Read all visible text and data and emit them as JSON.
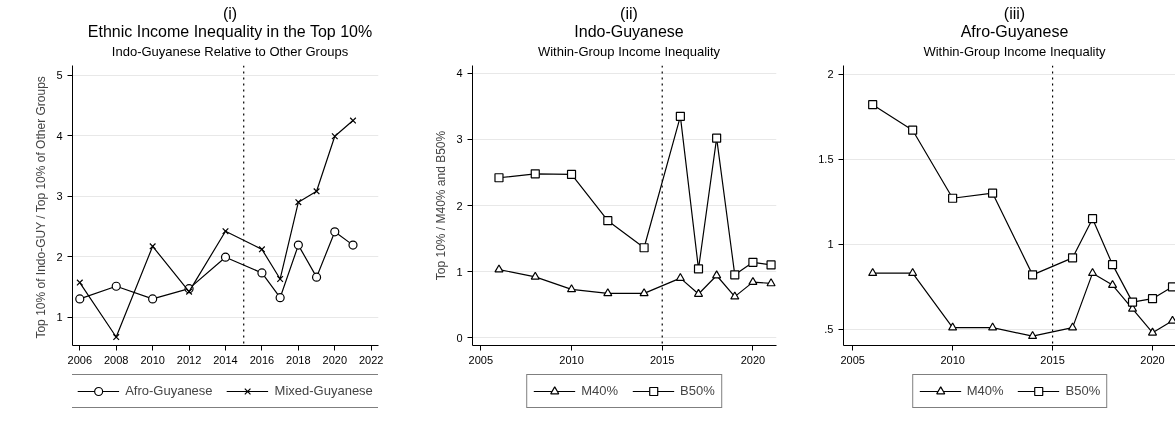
{
  "chart_data": [
    {
      "type": "line",
      "title": "(i)\nEthnic Income Inequality in the Top 10%",
      "subtitle": "Indo-Guyanese Relative to Other Groups",
      "ylabel": "Top 10% of Indo-GUY / Top 10%  of Other Groups",
      "x": [
        2006,
        2008,
        2010,
        2012,
        2014,
        2016,
        2017,
        2018,
        2019,
        2020,
        2021
      ],
      "series": [
        {
          "name": "Afro-Guyanese",
          "color": "#000000",
          "marker": "circle",
          "values": [
            1.3,
            1.51,
            1.3,
            1.47,
            1.99,
            1.73,
            1.32,
            2.19,
            1.66,
            2.41,
            2.19
          ]
        },
        {
          "name": "Mixed-Guyanese",
          "color": "#000000",
          "marker": "cross",
          "values": [
            1.57,
            0.67,
            2.17,
            1.42,
            2.42,
            2.12,
            1.63,
            2.9,
            3.08,
            3.99,
            4.25
          ]
        }
      ],
      "xlim": [
        2005.6,
        2022.4
      ],
      "xticks": [
        2006,
        2008,
        2010,
        2012,
        2014,
        2016,
        2018,
        2020,
        2022
      ],
      "ylim": [
        0.53,
        5.16
      ],
      "yticks": [
        1,
        2,
        3,
        4,
        5
      ],
      "ref_lines": [
        {
          "axis": "x",
          "value": 2015,
          "line_style": "dotted",
          "color": "#000000"
        }
      ],
      "grid": "y",
      "legend": "bottom"
    },
    {
      "type": "line",
      "title": "(ii)\nIndo-Guyanese",
      "subtitle": "Within-Group Income Inequality",
      "ylabel": "Top 10% / M40% and B50%",
      "x": [
        2006,
        2008,
        2010,
        2012,
        2014,
        2016,
        2017,
        2018,
        2019,
        2020,
        2021
      ],
      "series": [
        {
          "name": "M40%",
          "color": "#000000",
          "marker": "triangle",
          "values": [
            1.03,
            0.92,
            0.73,
            0.67,
            0.67,
            0.9,
            0.66,
            0.94,
            0.62,
            0.84,
            0.82
          ]
        },
        {
          "name": "B50%",
          "color": "#000000",
          "marker": "square",
          "values": [
            2.42,
            2.48,
            2.47,
            1.77,
            1.36,
            3.35,
            1.04,
            3.02,
            0.95,
            1.14,
            1.1
          ]
        }
      ],
      "xlim": [
        2004.54,
        2021.3
      ],
      "xticks": [
        2005,
        2010,
        2015,
        2020
      ],
      "ylim": [
        -0.12,
        4.12
      ],
      "yticks": [
        0,
        1,
        2,
        3,
        4
      ],
      "ref_lines": [
        {
          "axis": "x",
          "value": 2015,
          "line_style": "dotted",
          "color": "#000000"
        }
      ],
      "grid": "y",
      "legend": "bottom"
    },
    {
      "type": "line",
      "title": "(iii)\nAfro-Guyanese",
      "subtitle": "Within-Group Income Inequality",
      "x": [
        2006,
        2008,
        2010,
        2012,
        2014,
        2016,
        2017,
        2018,
        2019,
        2020,
        2021
      ],
      "series": [
        {
          "name": "M40%",
          "color": "#000000",
          "marker": "triangle",
          "values": [
            0.83,
            0.83,
            0.51,
            0.51,
            0.46,
            0.51,
            0.83,
            0.76,
            0.62,
            0.48,
            0.55
          ]
        },
        {
          "name": "B50%",
          "color": "#000000",
          "marker": "square",
          "values": [
            1.82,
            1.67,
            1.27,
            1.3,
            0.82,
            0.92,
            1.15,
            0.88,
            0.66,
            0.68,
            0.75
          ]
        }
      ],
      "xlim": [
        2004.54,
        2021.2
      ],
      "xticks": [
        2005,
        2010,
        2015,
        2020
      ],
      "ylim": [
        0.405,
        2.05
      ],
      "yticks": [
        {
          "value": 0.5,
          "label": ".5"
        },
        1,
        1.5,
        2
      ],
      "ref_lines": [
        {
          "axis": "x",
          "value": 2015,
          "line_style": "dotted",
          "color": "#000000"
        }
      ],
      "grid": "y",
      "legend": "bottom"
    }
  ]
}
